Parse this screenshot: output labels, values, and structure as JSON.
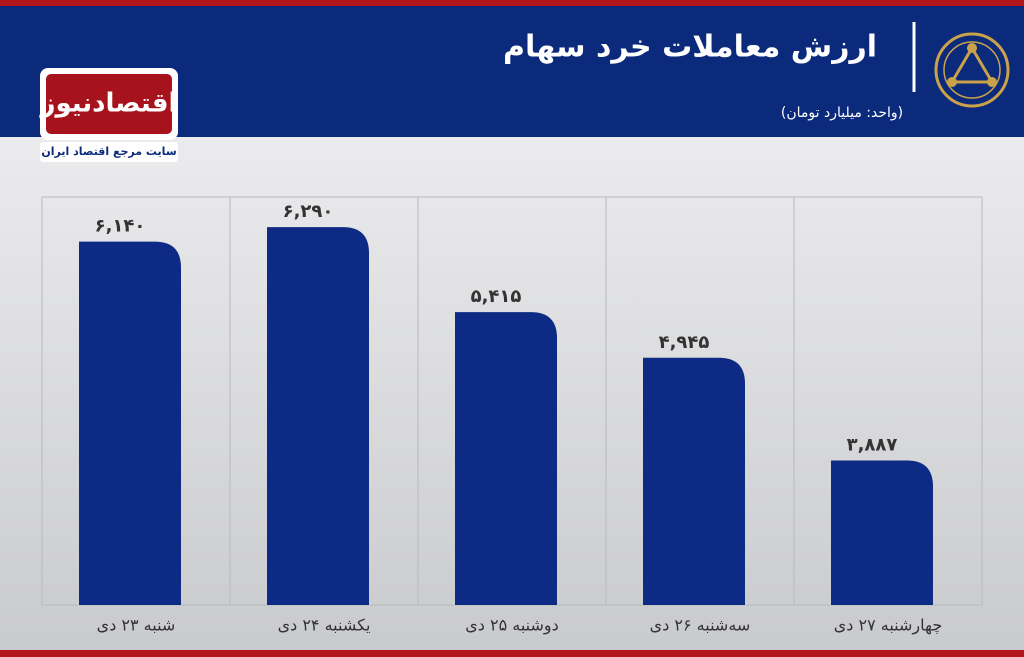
{
  "header": {
    "title": "ارزش معاملات خرد سهام",
    "subtitle": "(واحد: میلیارد تومان)",
    "logo": {
      "name": "اقتصادنیوز",
      "tagline": "سایت مرجع اقتصاد ایران"
    }
  },
  "chart_data": {
    "type": "bar",
    "categories": [
      "شنبه ۲۳ دی",
      "یکشنبه ۲۴ دی",
      "دوشنبه ۲۵ دی",
      "سه‌شنبه ۲۶ دی",
      "چهارشنبه ۲۷ دی"
    ],
    "values": [
      6140,
      6290,
      5415,
      4945,
      3887
    ],
    "value_labels": [
      "۶,۱۴۰",
      "۶,۲۹۰",
      "۵,۴۱۵",
      "۴,۹۴۵",
      "۳,۸۸۷"
    ],
    "color": "#0d2a85",
    "ylim": [
      2400,
      6600
    ]
  }
}
